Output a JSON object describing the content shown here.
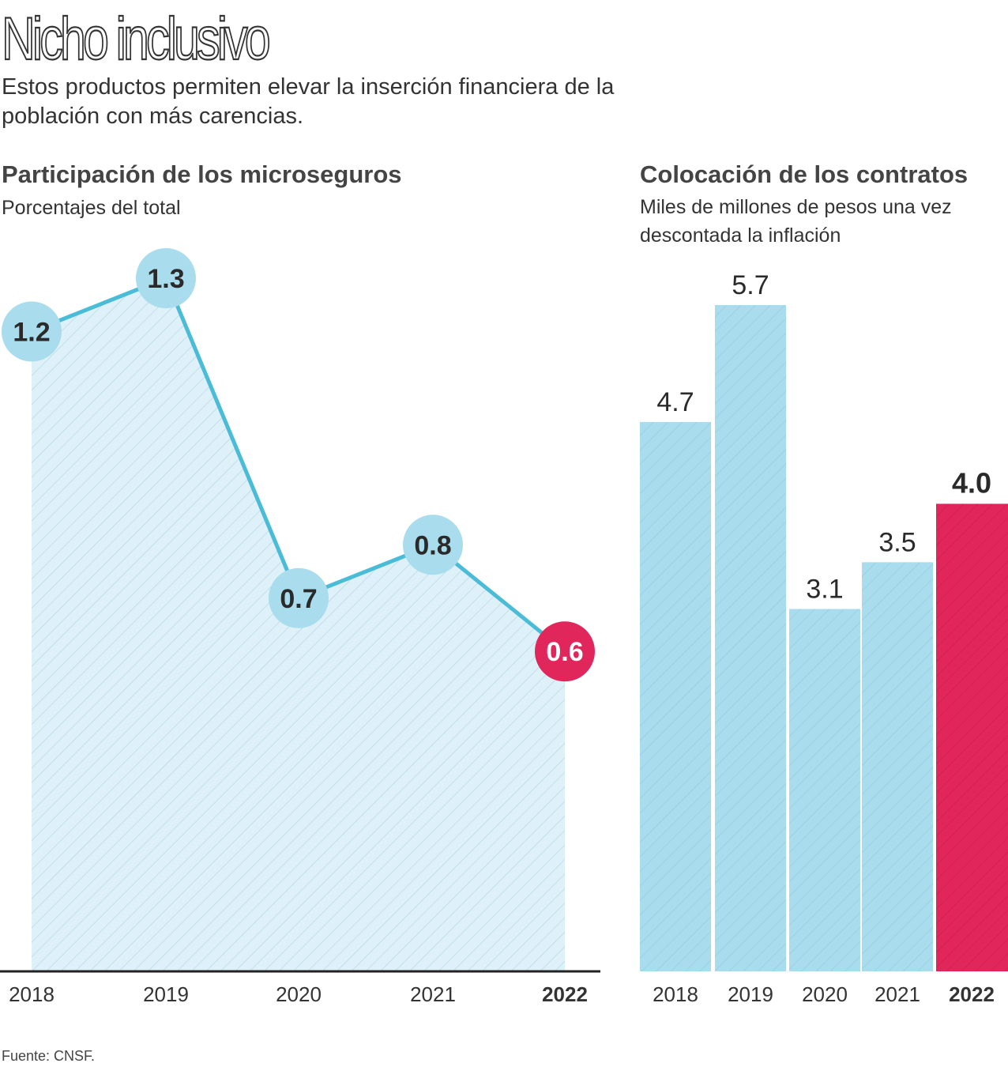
{
  "title": "Nicho inclusivo",
  "subtitle": "Estos productos permiten elevar la inserción financiera de la población con más carencias.",
  "source": "Fuente: CNSF.",
  "colors": {
    "blue": "#4bbcd8",
    "light_blue": "#a9dced",
    "area": "#dff1f8",
    "red": "#e0265a",
    "axis": "#222222"
  },
  "chart_data": [
    {
      "type": "area",
      "title": "Participación de los microseguros",
      "subtitle": "Porcentajes del total",
      "categories": [
        "2018",
        "2019",
        "2020",
        "2021",
        "2022"
      ],
      "values": [
        1.2,
        1.3,
        0.7,
        0.8,
        0.6
      ],
      "labels": [
        "1.2",
        "1.3",
        "0.7",
        "0.8",
        "0.6"
      ],
      "highlight": "2022",
      "ylim": [
        0,
        1.5
      ]
    },
    {
      "type": "bar",
      "title": "Colocación de los contratos",
      "subtitle": "Miles de millones de pesos una vez descontada la inflación",
      "categories": [
        "2018",
        "2019",
        "2020",
        "2021",
        "2022"
      ],
      "values": [
        4.7,
        5.7,
        3.1,
        3.5,
        4.0
      ],
      "labels": [
        "4.7",
        "5.7",
        "3.1",
        "3.5",
        "4.0"
      ],
      "highlight": "2022",
      "ylim": [
        0,
        6.2
      ]
    }
  ]
}
